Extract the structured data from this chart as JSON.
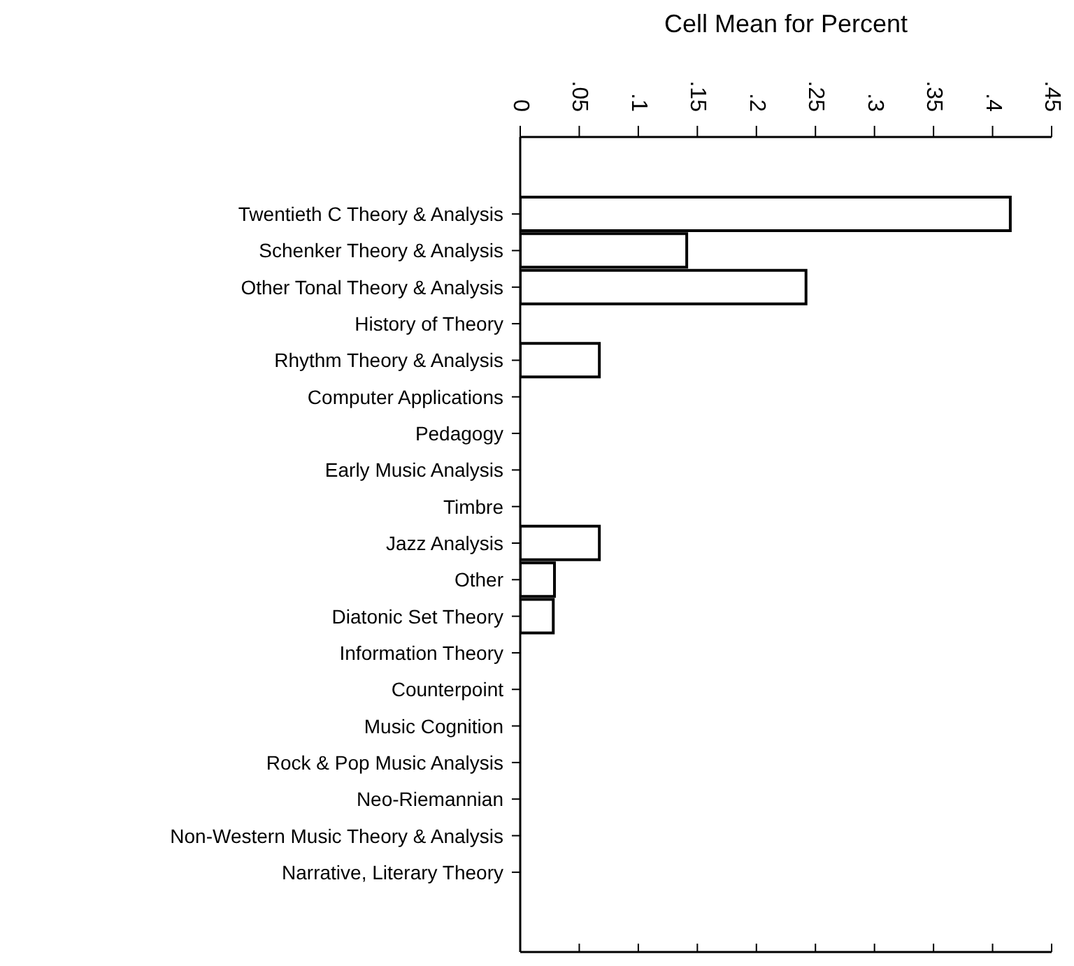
{
  "chart_data": {
    "type": "bar",
    "orientation": "horizontal",
    "xlabel": "Cell Mean for Percent",
    "categories": [
      "Twentieth C Theory & Analysis",
      "Schenker Theory & Analysis",
      "Other Tonal Theory & Analysis",
      "History of Theory",
      "Rhythm Theory & Analysis",
      "Computer Applications",
      "Pedagogy",
      "Early Music Analysis",
      "Timbre",
      "Jazz Analysis",
      "Other",
      "Diatonic Set Theory",
      "Information Theory",
      "Counterpoint",
      "Music Cognition",
      "Rock & Pop Music Analysis",
      "Neo-Riemannian",
      "Non-Western Music Theory & Analysis",
      "Narrative, Literary Theory"
    ],
    "values": [
      0.415,
      0.141,
      0.242,
      0,
      0.067,
      0,
      0,
      0,
      0,
      0.067,
      0.029,
      0.028,
      0,
      0,
      0,
      0,
      0,
      0,
      0
    ],
    "color": "#ffffff",
    "xlim": [
      0,
      0.45
    ],
    "xticks": [
      {
        "value": 0,
        "label": "0"
      },
      {
        "value": 0.05,
        "label": ".05"
      },
      {
        "value": 0.1,
        "label": ".1"
      },
      {
        "value": 0.15,
        "label": ".15"
      },
      {
        "value": 0.2,
        "label": ".2"
      },
      {
        "value": 0.25,
        "label": ".25"
      },
      {
        "value": 0.3,
        "label": ".3"
      },
      {
        "value": 0.35,
        "label": ".35"
      },
      {
        "value": 0.4,
        "label": ".4"
      },
      {
        "value": 0.45,
        "label": ".45"
      }
    ],
    "tick_labels": "xy"
  }
}
